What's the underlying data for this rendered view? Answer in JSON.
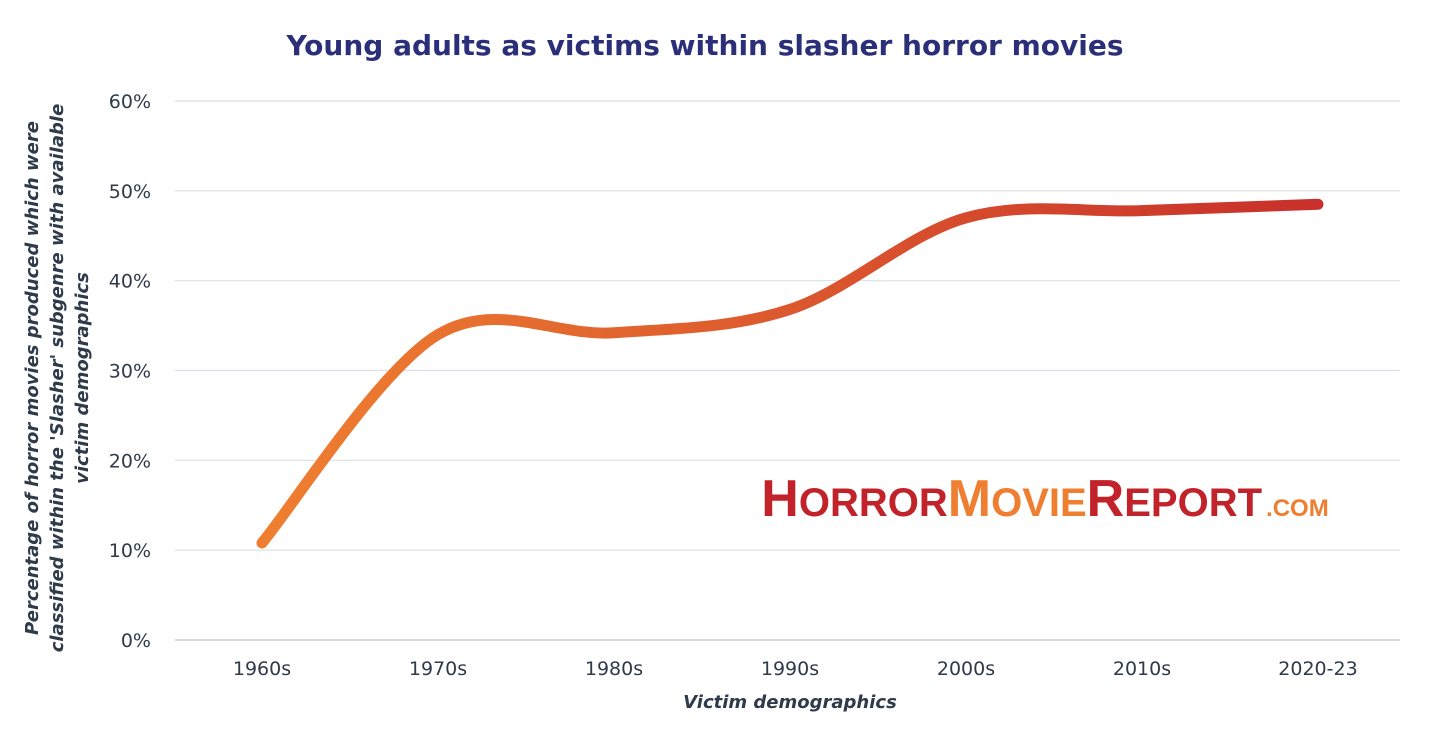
{
  "chart_data": {
    "type": "line",
    "title": "Young adults as victims within slasher horror movies",
    "xlabel": "Victim demographics",
    "ylabel_lines": [
      "Percentage of horror movies produced which were",
      "classified within the 'Slasher' subgenre with available",
      "victim demographics"
    ],
    "categories": [
      "1960s",
      "1970s",
      "1980s",
      "1990s",
      "2000s",
      "2010s",
      "2020-23"
    ],
    "series": [
      {
        "values": [
          10.8,
          34.0,
          34.2,
          36.8,
          47.0,
          47.8,
          48.5
        ]
      }
    ],
    "ylim": [
      0,
      60
    ],
    "yticks": [
      0,
      10,
      20,
      30,
      40,
      50,
      60
    ],
    "ytick_labels": [
      "0%",
      "10%",
      "20%",
      "30%",
      "40%",
      "50%",
      "60%"
    ],
    "grid": true,
    "line_colors": [
      "#ef7f30",
      "#c8302b"
    ]
  },
  "logo": {
    "part1_cap": "H",
    "part1_rest": "ORROR",
    "part2_cap": "M",
    "part2_rest": "OVIE",
    "part3_cap": "R",
    "part3_rest": "EPORT",
    "suffix": ".COM",
    "color_red": "#c2232b",
    "color_orange": "#ef7f30"
  }
}
